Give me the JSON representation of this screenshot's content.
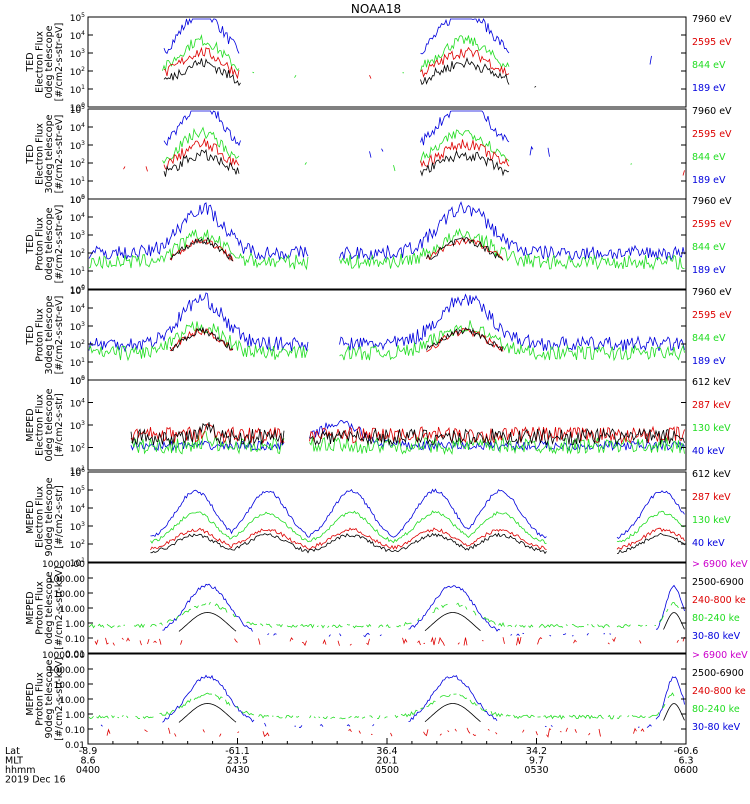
{
  "title": "NOAA18",
  "colors": {
    "black": "#000000",
    "red": "#dd0000",
    "green": "#22dd22",
    "blue": "#0000dd",
    "magenta": "#cc00cc"
  },
  "chart_data": {
    "type": "line",
    "title": "NOAA18",
    "x_axis": {
      "rows": [
        {
          "label": "Lat",
          "values": [
            "-8.9",
            "-61.1",
            "36.4",
            "34.2",
            "-60.6"
          ]
        },
        {
          "label": "MLT",
          "values": [
            "8.6",
            "23.5",
            "20.1",
            "9.7",
            "6.3"
          ]
        },
        {
          "label": "hhmm",
          "values": [
            "0400",
            "0430",
            "0500",
            "0530",
            "0600"
          ]
        }
      ],
      "date": "2019 Dec 16"
    },
    "panels": [
      {
        "ylabel": [
          "TED",
          "Electron Flux",
          "0deg telescope",
          "[#/cm2-s-str-eV]"
        ],
        "yscale": "log",
        "ylim": [
          1,
          100000
        ],
        "yticks": [
          {
            "base": "10",
            "exp": "0"
          },
          {
            "base": "10",
            "exp": "1"
          },
          {
            "base": "10",
            "exp": "2"
          },
          {
            "base": "10",
            "exp": "3"
          },
          {
            "base": "10",
            "exp": "4"
          },
          {
            "base": "10",
            "exp": "5"
          }
        ],
        "legend": [
          {
            "name": "7960 eV",
            "color": "black"
          },
          {
            "name": "2595 eV",
            "color": "red"
          },
          {
            "name": "844 eV",
            "color": "green"
          },
          {
            "name": "189 eV",
            "color": "blue"
          }
        ]
      },
      {
        "ylabel": [
          "TED",
          "Electron Flux",
          "30deg telescope",
          "[#/cm2-s-str-eV]"
        ],
        "yscale": "log",
        "ylim": [
          1,
          100000
        ],
        "yticks": [
          {
            "base": "10",
            "exp": "0"
          },
          {
            "base": "10",
            "exp": "1"
          },
          {
            "base": "10",
            "exp": "2"
          },
          {
            "base": "10",
            "exp": "3"
          },
          {
            "base": "10",
            "exp": "4"
          },
          {
            "base": "10",
            "exp": "5"
          }
        ],
        "legend": [
          {
            "name": "7960 eV",
            "color": "black"
          },
          {
            "name": "2595 eV",
            "color": "red"
          },
          {
            "name": "844 eV",
            "color": "green"
          },
          {
            "name": "189 eV",
            "color": "blue"
          }
        ]
      },
      {
        "ylabel": [
          "TED",
          "Proton Flux",
          "0deg telescope",
          "[#/cm2-s-str-eV]"
        ],
        "yscale": "log",
        "ylim": [
          1,
          100000
        ],
        "yticks": [
          {
            "base": "10",
            "exp": "0"
          },
          {
            "base": "10",
            "exp": "1"
          },
          {
            "base": "10",
            "exp": "2"
          },
          {
            "base": "10",
            "exp": "3"
          },
          {
            "base": "10",
            "exp": "4"
          },
          {
            "base": "10",
            "exp": "5"
          }
        ],
        "legend": [
          {
            "name": "7960 eV",
            "color": "black"
          },
          {
            "name": "2595 eV",
            "color": "red"
          },
          {
            "name": "844 eV",
            "color": "green"
          },
          {
            "name": "189 eV",
            "color": "blue"
          }
        ]
      },
      {
        "ylabel": [
          "TED",
          "Proton Flux",
          "30deg telescope",
          "[#/cm2-s-str-eV]"
        ],
        "yscale": "log",
        "ylim": [
          1,
          100000
        ],
        "yticks": [
          {
            "base": "10",
            "exp": "0"
          },
          {
            "base": "10",
            "exp": "1"
          },
          {
            "base": "10",
            "exp": "2"
          },
          {
            "base": "10",
            "exp": "3"
          },
          {
            "base": "10",
            "exp": "4"
          },
          {
            "base": "10",
            "exp": "5"
          }
        ],
        "legend": [
          {
            "name": "7960 eV",
            "color": "black"
          },
          {
            "name": "2595 eV",
            "color": "red"
          },
          {
            "name": "844 eV",
            "color": "green"
          },
          {
            "name": "189 eV",
            "color": "blue"
          }
        ]
      },
      {
        "ylabel": [
          "MEPED",
          "Electron Flux",
          "0deg telescope",
          "[#/cm2-s-str]"
        ],
        "yscale": "log",
        "ylim": [
          10,
          100000
        ],
        "yticks": [
          {
            "base": "10",
            "exp": "1"
          },
          {
            "base": "10",
            "exp": "2"
          },
          {
            "base": "10",
            "exp": "3"
          },
          {
            "base": "10",
            "exp": "4"
          },
          {
            "base": "10",
            "exp": "5"
          }
        ],
        "legend": [
          {
            "name": "612 keV",
            "color": "black"
          },
          {
            "name": "287 keV",
            "color": "red"
          },
          {
            "name": "130 keV",
            "color": "green"
          },
          {
            "name": "40 keV",
            "color": "blue"
          }
        ]
      },
      {
        "ylabel": [
          "MEPED",
          "Electron Flux",
          "90deg telescope",
          "[#/cm2-s-str]"
        ],
        "yscale": "log",
        "ylim": [
          10,
          1000000
        ],
        "yticks": [
          {
            "base": "10",
            "exp": "1"
          },
          {
            "base": "10",
            "exp": "2"
          },
          {
            "base": "10",
            "exp": "3"
          },
          {
            "base": "10",
            "exp": "4"
          },
          {
            "base": "10",
            "exp": "5"
          },
          {
            "base": "10",
            "exp": "6"
          }
        ],
        "legend": [
          {
            "name": "612 keV",
            "color": "black"
          },
          {
            "name": "287 keV",
            "color": "red"
          },
          {
            "name": "130 keV",
            "color": "green"
          },
          {
            "name": "40 keV",
            "color": "blue"
          }
        ]
      },
      {
        "ylabel": [
          "MEPED",
          "Proton Flux",
          "0deg telescope",
          "[#/cm2-s-str-keV]"
        ],
        "yscale": "log",
        "ylim": [
          0.01,
          10000
        ],
        "yticks": [
          {
            "base": "0.01",
            "exp": ""
          },
          {
            "base": "0.10",
            "exp": ""
          },
          {
            "base": "1.00",
            "exp": ""
          },
          {
            "base": "10.00",
            "exp": ""
          },
          {
            "base": "100.00",
            "exp": ""
          },
          {
            "base": "1000.00",
            "exp": ""
          },
          {
            "base": "10000.00",
            "exp": ""
          }
        ],
        "legend": [
          {
            "name": "> 6900 keV",
            "color": "magenta"
          },
          {
            "name": "2500-6900",
            "color": "black"
          },
          {
            "name": "240-800 ke",
            "color": "red"
          },
          {
            "name": "80-240 ke",
            "color": "green"
          },
          {
            "name": "30-80 keV",
            "color": "blue"
          }
        ]
      },
      {
        "ylabel": [
          "MEPED",
          "Proton Flux",
          "90deg telescope",
          "[#/cm2-s-str-keV]"
        ],
        "yscale": "log",
        "ylim": [
          0.01,
          10000
        ],
        "yticks": [
          {
            "base": "0.01",
            "exp": ""
          },
          {
            "base": "0.10",
            "exp": ""
          },
          {
            "base": "1.00",
            "exp": ""
          },
          {
            "base": "10.00",
            "exp": ""
          },
          {
            "base": "100.00",
            "exp": ""
          },
          {
            "base": "1000.00",
            "exp": ""
          },
          {
            "base": "10000.00",
            "exp": ""
          }
        ],
        "legend": [
          {
            "name": "> 6900 keV",
            "color": "magenta"
          },
          {
            "name": "2500-6900",
            "color": "black"
          },
          {
            "name": "240-800 ke",
            "color": "red"
          },
          {
            "name": "80-240 ke",
            "color": "green"
          },
          {
            "name": "30-80 keV",
            "color": "blue"
          }
        ]
      }
    ]
  }
}
